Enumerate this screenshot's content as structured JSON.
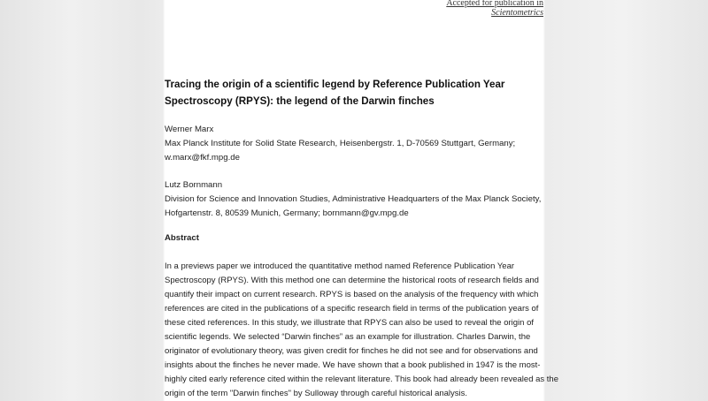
{
  "header": {
    "accepted_line1": "Accepted for publication in",
    "accepted_line2": "Scientometrics"
  },
  "title_lines": [
    "Tracing the origin of a scientific legend by Reference Publication Year",
    "Spectroscopy (RPYS): the legend of the Darwin finches"
  ],
  "authors": [
    {
      "name": "Werner Marx",
      "affiliation_lines": [
        "Max Planck Institute for Solid State Research, Heisenbergstr. 1, D-70569 Stuttgart, Germany;",
        "w.marx@fkf.mpg.de"
      ]
    },
    {
      "name": "Lutz Bornmann",
      "affiliation_lines": [
        "Division for Science and Innovation Studies, Administrative Headquarters of the Max Planck Society,",
        "Hofgartenstr. 8, 80539 Munich, Germany; bornmann@gv.mpg.de"
      ]
    }
  ],
  "abstract": {
    "heading": "Abstract",
    "lines": [
      "In a previews paper we introduced the quantitative method named Reference Publication Year",
      "Spectroscopy (RPYS). With this method one can determine the historical roots of research fields and",
      "quantify their impact on current research. RPYS is based on the analysis of the frequency with which",
      "references are cited in the publications of a specific research field in terms of the publication years of",
      "these cited references. In this study, we illustrate that RPYS can also be used to reveal the origin of",
      "scientific legends. We selected “Darwin finches” as an example for illustration. Charles Darwin, the",
      "originator of evolutionary theory, was given credit for finches he did not see and for observations and",
      "insights about the finches he never made. We have shown that a book published in 1947 is the most-",
      "highly cited early reference cited within the relevant literature. This book had already been revealed as the",
      "origin of the term \"Darwin finches\" by Sulloway through careful historical analysis."
    ]
  }
}
